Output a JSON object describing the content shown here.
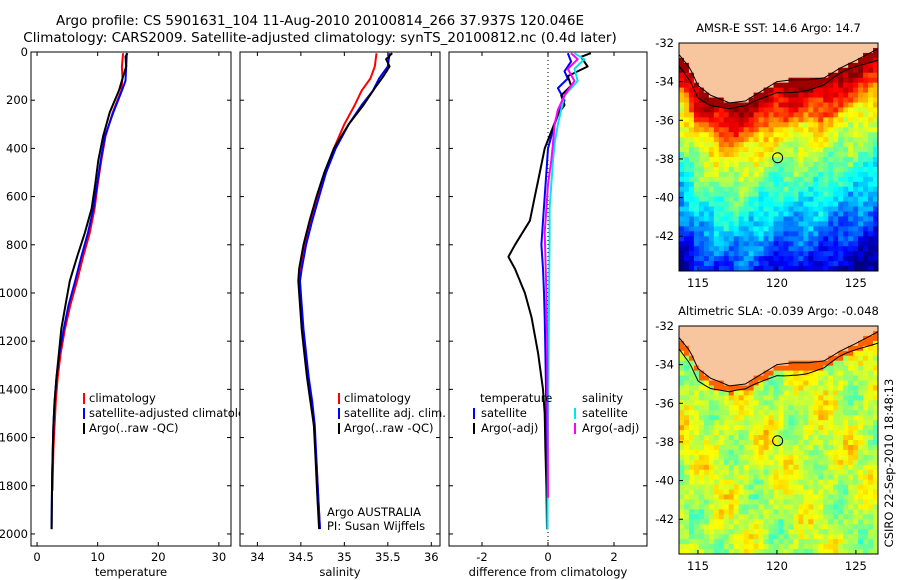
{
  "header": {
    "line1": "Argo profile: CS 5901631_104 11-Aug-2010 20100814_266 37.937S 120.046E",
    "line2": "Climatology: CARS2009. Satellite-adjusted climatology: synTS_20100812.nc (0.4d later)"
  },
  "credit": "CSIRO 22-Sep-2010 18:48:13",
  "colors": {
    "climatology": "#ff0000",
    "satellite": "#0000ff",
    "argo": "#000000",
    "sal_satellite": "#00e5ee",
    "sal_argo": "#ff00ff"
  },
  "chart_data": [
    {
      "type": "line",
      "panel": "temperature",
      "xlabel": "temperature",
      "xlim": [
        -1,
        32
      ],
      "ylim": [
        2050,
        0
      ],
      "y_reversed": true,
      "xticks": [
        0,
        10,
        20,
        30
      ],
      "yticks": [
        0,
        200,
        400,
        600,
        800,
        1000,
        1200,
        1400,
        1600,
        1800,
        2000
      ],
      "legend": [
        "climatology",
        "satellite-adjusted climatology",
        "Argo(..raw -QC)"
      ],
      "series": [
        {
          "name": "climatology",
          "color": "#ff0000",
          "points": [
            [
              14.2,
              5
            ],
            [
              14.0,
              60
            ],
            [
              14.1,
              110
            ],
            [
              13.9,
              160
            ],
            [
              12.5,
              250
            ],
            [
              11.3,
              350
            ],
            [
              10.6,
              450
            ],
            [
              10.0,
              550
            ],
            [
              9.5,
              650
            ],
            [
              8.7,
              750
            ],
            [
              7.6,
              850
            ],
            [
              6.6,
              950
            ],
            [
              5.5,
              1050
            ],
            [
              4.6,
              1150
            ],
            [
              3.9,
              1250
            ],
            [
              3.4,
              1350
            ],
            [
              3.1,
              1450
            ],
            [
              2.9,
              1550
            ],
            [
              2.7,
              1650
            ],
            [
              2.6,
              1750
            ],
            [
              2.55,
              1820
            ]
          ]
        },
        {
          "name": "satellite-adjusted climatology",
          "color": "#0000ff",
          "points": [
            [
              14.8,
              5
            ],
            [
              14.7,
              60
            ],
            [
              14.6,
              120
            ],
            [
              14.0,
              160
            ],
            [
              12.6,
              250
            ],
            [
              11.2,
              350
            ],
            [
              10.5,
              450
            ],
            [
              9.9,
              550
            ],
            [
              9.3,
              650
            ],
            [
              8.4,
              750
            ],
            [
              7.3,
              850
            ],
            [
              6.3,
              950
            ],
            [
              5.2,
              1050
            ],
            [
              4.4,
              1150
            ],
            [
              3.7,
              1250
            ],
            [
              3.2,
              1350
            ],
            [
              2.9,
              1450
            ],
            [
              2.7,
              1550
            ],
            [
              2.6,
              1650
            ],
            [
              2.5,
              1750
            ],
            [
              2.45,
              1850
            ],
            [
              2.4,
              1980
            ]
          ]
        },
        {
          "name": "Argo(..raw -QC)",
          "color": "#000000",
          "points": [
            [
              14.9,
              5
            ],
            [
              14.6,
              20
            ],
            [
              14.7,
              60
            ],
            [
              14.1,
              110
            ],
            [
              13.5,
              160
            ],
            [
              12.0,
              250
            ],
            [
              10.9,
              350
            ],
            [
              10.1,
              450
            ],
            [
              9.6,
              550
            ],
            [
              9.0,
              650
            ],
            [
              7.9,
              750
            ],
            [
              6.6,
              850
            ],
            [
              5.4,
              950
            ],
            [
              4.7,
              1050
            ],
            [
              4.0,
              1150
            ],
            [
              3.6,
              1250
            ],
            [
              3.2,
              1350
            ],
            [
              2.9,
              1450
            ],
            [
              2.7,
              1550
            ],
            [
              2.6,
              1650
            ],
            [
              2.5,
              1750
            ],
            [
              2.45,
              1850
            ],
            [
              2.4,
              1980
            ]
          ]
        }
      ]
    },
    {
      "type": "line",
      "panel": "salinity",
      "xlabel": "salinity",
      "xlim": [
        33.8,
        36.1
      ],
      "ylim": [
        2050,
        0
      ],
      "y_reversed": true,
      "xticks": [
        34,
        34.5,
        35,
        35.5,
        36
      ],
      "annotation": [
        "Argo AUSTRALIA",
        "PI: Susan Wijffels"
      ],
      "legend": [
        "climatology",
        "satellite adj. clim.",
        "Argo(..raw -QC)"
      ],
      "series": [
        {
          "name": "climatology",
          "color": "#ff0000",
          "points": [
            [
              35.37,
              5
            ],
            [
              35.35,
              60
            ],
            [
              35.3,
              110
            ],
            [
              35.2,
              160
            ],
            [
              35.12,
              220
            ],
            [
              35.0,
              300
            ],
            [
              34.88,
              400
            ],
            [
              34.78,
              500
            ],
            [
              34.7,
              600
            ],
            [
              34.62,
              700
            ],
            [
              34.55,
              800
            ],
            [
              34.5,
              900
            ],
            [
              34.48,
              950
            ],
            [
              34.5,
              1050
            ],
            [
              34.52,
              1150
            ],
            [
              34.55,
              1250
            ],
            [
              34.58,
              1350
            ],
            [
              34.62,
              1450
            ],
            [
              34.65,
              1550
            ],
            [
              34.68,
              1700
            ],
            [
              34.7,
              1850
            ],
            [
              34.72,
              1980
            ]
          ]
        },
        {
          "name": "satellite adj. clim.",
          "color": "#0000ff",
          "points": [
            [
              35.52,
              5
            ],
            [
              35.5,
              60
            ],
            [
              35.4,
              110
            ],
            [
              35.33,
              160
            ],
            [
              35.2,
              220
            ],
            [
              35.05,
              300
            ],
            [
              34.9,
              400
            ],
            [
              34.79,
              500
            ],
            [
              34.71,
              600
            ],
            [
              34.63,
              700
            ],
            [
              34.56,
              800
            ],
            [
              34.51,
              900
            ],
            [
              34.49,
              950
            ],
            [
              34.51,
              1050
            ],
            [
              34.53,
              1150
            ],
            [
              34.56,
              1250
            ],
            [
              34.59,
              1350
            ],
            [
              34.63,
              1450
            ],
            [
              34.66,
              1550
            ],
            [
              34.68,
              1700
            ],
            [
              34.7,
              1850
            ],
            [
              34.72,
              1980
            ]
          ]
        },
        {
          "name": "Argo(..raw -QC)",
          "color": "#000000",
          "points": [
            [
              35.55,
              5
            ],
            [
              35.48,
              30
            ],
            [
              35.52,
              60
            ],
            [
              35.45,
              100
            ],
            [
              35.35,
              150
            ],
            [
              35.22,
              220
            ],
            [
              35.05,
              300
            ],
            [
              34.88,
              400
            ],
            [
              34.77,
              500
            ],
            [
              34.68,
              600
            ],
            [
              34.6,
              700
            ],
            [
              34.53,
              800
            ],
            [
              34.48,
              900
            ],
            [
              34.47,
              950
            ],
            [
              34.49,
              1050
            ],
            [
              34.51,
              1150
            ],
            [
              34.54,
              1250
            ],
            [
              34.57,
              1350
            ],
            [
              34.61,
              1450
            ],
            [
              34.65,
              1550
            ],
            [
              34.67,
              1700
            ],
            [
              34.69,
              1850
            ],
            [
              34.71,
              1980
            ]
          ]
        }
      ]
    },
    {
      "type": "line",
      "panel": "difference",
      "xlabel": "difference from climatology",
      "xlim": [
        -3,
        3
      ],
      "ylim": [
        2050,
        0
      ],
      "y_reversed": true,
      "xticks": [
        -2,
        0,
        2
      ],
      "legend_temperature": [
        "temperature",
        "satellite",
        "Argo(-adj)"
      ],
      "legend_salinity": [
        "salinity",
        "satellite",
        "Argo(-adj)"
      ],
      "series": [
        {
          "name": "temperature satellite",
          "color": "#0000ff",
          "points": [
            [
              0.6,
              5
            ],
            [
              0.7,
              40
            ],
            [
              0.5,
              80
            ],
            [
              0.6,
              110
            ],
            [
              0.3,
              150
            ],
            [
              0.5,
              200
            ],
            [
              0.3,
              260
            ],
            [
              0.2,
              300
            ],
            [
              0.1,
              350
            ],
            [
              0.0,
              400
            ],
            [
              -0.05,
              500
            ],
            [
              -0.1,
              600
            ],
            [
              -0.15,
              700
            ],
            [
              -0.2,
              800
            ],
            [
              -0.15,
              900
            ],
            [
              -0.12,
              1000
            ],
            [
              -0.1,
              1100
            ],
            [
              -0.08,
              1250
            ],
            [
              -0.06,
              1400
            ],
            [
              -0.05,
              1550
            ],
            [
              -0.04,
              1700
            ],
            [
              -0.03,
              1850
            ],
            [
              -0.02,
              1980
            ]
          ]
        },
        {
          "name": "temperature Argo(-adj)",
          "color": "#000000",
          "points": [
            [
              1.3,
              5
            ],
            [
              1.0,
              20
            ],
            [
              1.2,
              60
            ],
            [
              0.6,
              100
            ],
            [
              0.7,
              140
            ],
            [
              0.4,
              180
            ],
            [
              0.5,
              220
            ],
            [
              0.3,
              260
            ],
            [
              0.1,
              330
            ],
            [
              -0.1,
              400
            ],
            [
              -0.25,
              500
            ],
            [
              -0.4,
              600
            ],
            [
              -0.55,
              700
            ],
            [
              -1.0,
              800
            ],
            [
              -1.2,
              850
            ],
            [
              -1.0,
              900
            ],
            [
              -0.7,
              1000
            ],
            [
              -0.5,
              1100
            ],
            [
              -0.3,
              1250
            ],
            [
              -0.15,
              1400
            ],
            [
              -0.1,
              1500
            ],
            [
              -0.08,
              1650
            ],
            [
              -0.05,
              1800
            ],
            [
              -0.03,
              1980
            ]
          ]
        },
        {
          "name": "salinity satellite",
          "color": "#00e5ee",
          "points": [
            [
              0.8,
              5
            ],
            [
              1.1,
              30
            ],
            [
              0.8,
              70
            ],
            [
              0.9,
              120
            ],
            [
              0.5,
              180
            ],
            [
              0.4,
              240
            ],
            [
              0.3,
              300
            ],
            [
              0.2,
              380
            ],
            [
              0.15,
              450
            ],
            [
              0.1,
              550
            ],
            [
              0.05,
              650
            ],
            [
              0.05,
              750
            ],
            [
              0.04,
              900
            ],
            [
              0.03,
              1050
            ],
            [
              0.02,
              1200
            ],
            [
              0.01,
              1400
            ],
            [
              0.0,
              1600
            ],
            [
              -0.01,
              1800
            ],
            [
              -0.02,
              1980
            ]
          ]
        },
        {
          "name": "salinity Argo(-adj)",
          "color": "#ff00ff",
          "points": [
            [
              0.7,
              5
            ],
            [
              0.9,
              30
            ],
            [
              0.6,
              70
            ],
            [
              0.8,
              120
            ],
            [
              0.5,
              180
            ],
            [
              0.3,
              240
            ],
            [
              0.2,
              300
            ],
            [
              0.15,
              380
            ],
            [
              0.1,
              450
            ],
            [
              0.0,
              550
            ],
            [
              -0.05,
              650
            ],
            [
              -0.1,
              750
            ],
            [
              -0.08,
              850
            ],
            [
              -0.05,
              1000
            ],
            [
              -0.03,
              1150
            ],
            [
              -0.02,
              1300
            ],
            [
              -0.02,
              1450
            ],
            [
              -0.01,
              1650
            ],
            [
              0.0,
              1850
            ]
          ]
        }
      ]
    },
    {
      "type": "heatmap",
      "panel": "sst-map",
      "title": "AMSR-E SST: 14.6  Argo: 14.7",
      "xlim": [
        113.8,
        126.4
      ],
      "ylim": [
        -43.8,
        -32
      ],
      "xticks": [
        115,
        120,
        125
      ],
      "yticks": [
        -32,
        -34,
        -36,
        -38,
        -40,
        -42
      ],
      "marker": {
        "lon": 120.046,
        "lat": -37.937
      }
    },
    {
      "type": "heatmap",
      "panel": "sla-map",
      "title": "Altimetric SLA: -0.039  Argo: -0.048",
      "xlim": [
        113.8,
        126.4
      ],
      "ylim": [
        -43.8,
        -32
      ],
      "xticks": [
        115,
        120,
        125
      ],
      "yticks": [
        -32,
        -34,
        -36,
        -38,
        -40,
        -42
      ],
      "marker": {
        "lon": 120.046,
        "lat": -37.937
      }
    }
  ]
}
